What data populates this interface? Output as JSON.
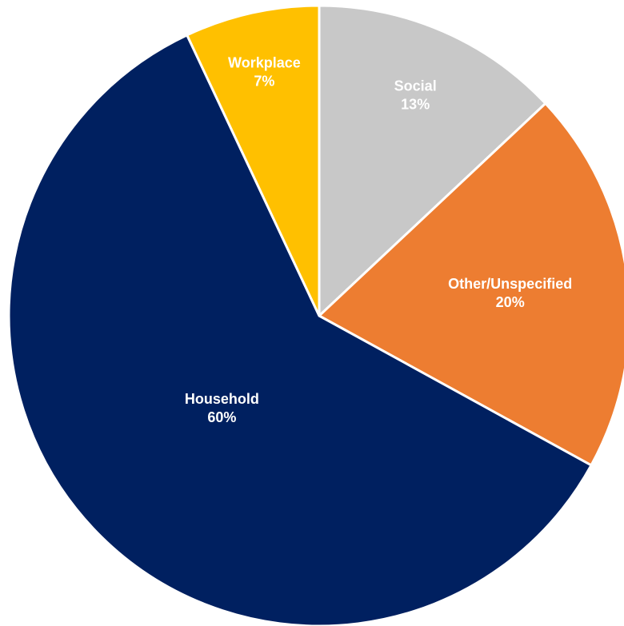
{
  "chart_data": {
    "type": "pie",
    "start_angle_deg": 0,
    "direction": "clockwise",
    "slices": [
      {
        "label": "Social",
        "value": 13,
        "value_label": "13%",
        "color": "#C8C8C8"
      },
      {
        "label": "Other/Unspecified",
        "value": 20,
        "value_label": "20%",
        "color": "#ED7D31"
      },
      {
        "label": "Household",
        "value": 60,
        "value_label": "60%",
        "color": "#002060"
      },
      {
        "label": "Workplace",
        "value": 7,
        "value_label": "7%",
        "color": "#FFC000"
      }
    ]
  }
}
